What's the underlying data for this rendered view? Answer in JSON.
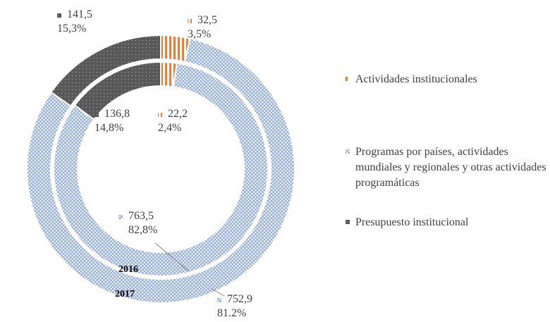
{
  "chart_data": {
    "type": "donut",
    "categories": [
      "Actividades institucionales",
      "Programas por países, actividades mundiales y regionales y otras actividades programáticas",
      "Presupuesto institucional"
    ],
    "colors": [
      "#ed7d31",
      "#8faadc",
      "#595959"
    ],
    "series": [
      {
        "name": "2016",
        "values": [
          22.2,
          763.5,
          136.8
        ],
        "value_labels": [
          "22,2",
          "763,5",
          "136,8"
        ],
        "percents": [
          2.4,
          82.8,
          14.8
        ],
        "percent_labels": [
          "2,4%",
          "82,8%",
          "14,8%"
        ]
      },
      {
        "name": "2017",
        "values": [
          32.5,
          752.9,
          141.5
        ],
        "value_labels": [
          "32,5",
          "752,9",
          "141,5"
        ],
        "percents": [
          3.5,
          81.2,
          15.3
        ],
        "percent_labels": [
          "3,5%",
          "81.2%",
          "15,3%"
        ]
      }
    ],
    "legend": "right"
  }
}
